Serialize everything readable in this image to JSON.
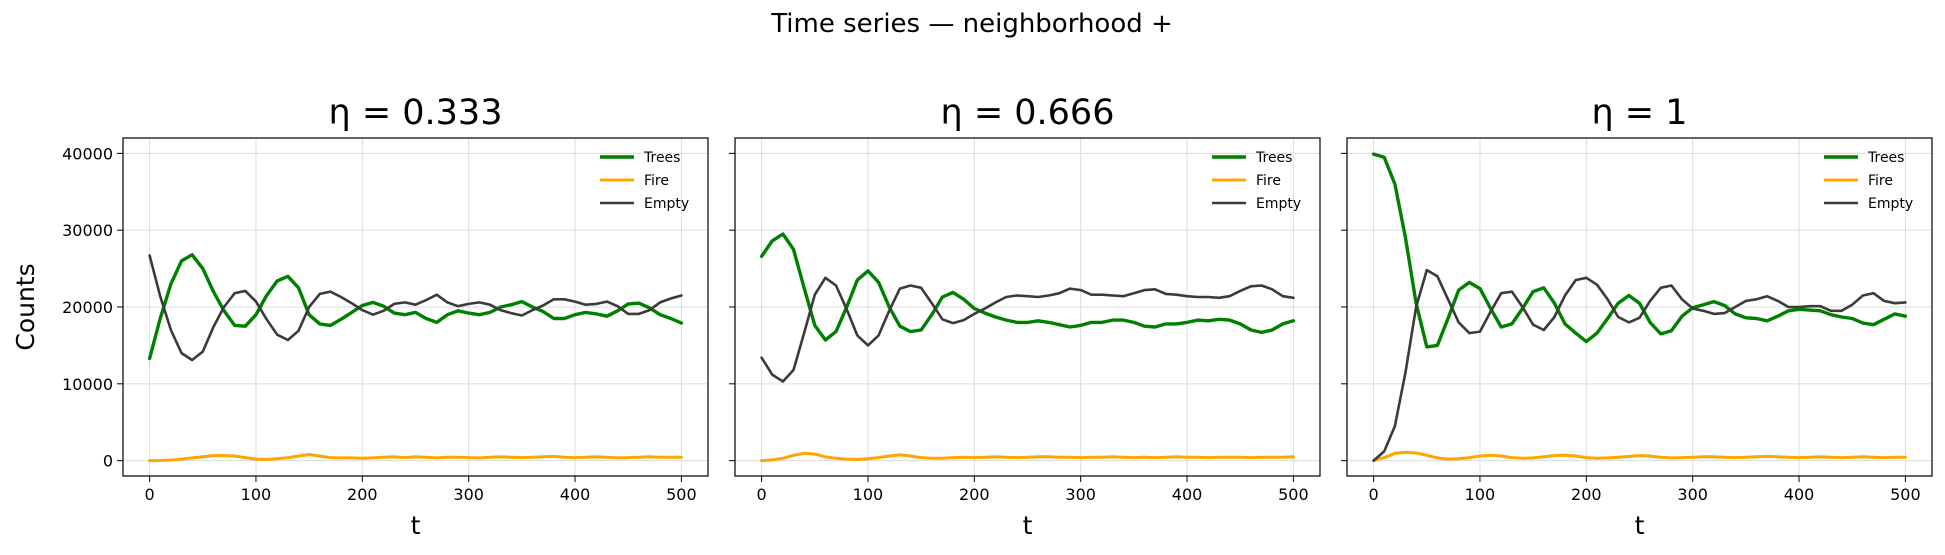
{
  "figure": {
    "suptitle": "Time series — neighborhood +"
  },
  "colors": {
    "Trees": "#008000",
    "Fire": "#ffa500",
    "Empty": "#3d3a3a"
  },
  "chart_data": [
    {
      "type": "line",
      "title": "η = 0.333",
      "xlabel": "t",
      "ylabel": "Counts",
      "xlim": [
        -25,
        525
      ],
      "ylim": [
        -2000,
        42000
      ],
      "xticks": [
        0,
        100,
        200,
        300,
        400,
        500
      ],
      "yticks": [
        0,
        10000,
        20000,
        30000,
        40000
      ],
      "grid": true,
      "legend": "top-right",
      "series": [
        {
          "name": "Trees",
          "x": [
            0,
            10,
            20,
            30,
            40,
            50,
            60,
            70,
            80,
            90,
            100,
            110,
            120,
            130,
            140,
            150,
            160,
            170,
            180,
            190,
            200,
            210,
            220,
            230,
            240,
            250,
            260,
            270,
            280,
            290,
            300,
            310,
            320,
            330,
            340,
            350,
            360,
            370,
            380,
            390,
            400,
            410,
            420,
            430,
            440,
            450,
            460,
            470,
            480,
            490,
            500
          ],
          "values": [
            13300,
            18500,
            23000,
            26000,
            26800,
            25000,
            22000,
            19500,
            17600,
            17500,
            19000,
            21500,
            23400,
            24000,
            22500,
            19000,
            17800,
            17600,
            18400,
            19300,
            20200,
            20600,
            20100,
            19200,
            19000,
            19300,
            18500,
            18000,
            19000,
            19500,
            19200,
            19000,
            19300,
            20000,
            20300,
            20700,
            20000,
            19400,
            18500,
            18500,
            19000,
            19300,
            19100,
            18800,
            19500,
            20400,
            20500,
            19900,
            19000,
            18500,
            17900
          ]
        },
        {
          "name": "Fire",
          "x": [
            0,
            10,
            20,
            30,
            40,
            50,
            60,
            70,
            80,
            90,
            100,
            110,
            120,
            130,
            140,
            150,
            160,
            170,
            180,
            190,
            200,
            210,
            220,
            230,
            240,
            250,
            260,
            270,
            280,
            290,
            300,
            310,
            320,
            330,
            340,
            350,
            360,
            370,
            380,
            390,
            400,
            410,
            420,
            430,
            440,
            450,
            460,
            470,
            480,
            490,
            500
          ],
          "values": [
            0,
            20,
            80,
            200,
            350,
            500,
            650,
            650,
            600,
            400,
            200,
            150,
            250,
            400,
            600,
            800,
            600,
            400,
            350,
            350,
            300,
            350,
            450,
            500,
            400,
            500,
            450,
            350,
            450,
            450,
            400,
            350,
            450,
            500,
            450,
            400,
            450,
            500,
            550,
            450,
            400,
            450,
            500,
            450,
            350,
            400,
            450,
            500,
            450,
            450,
            450
          ]
        },
        {
          "name": "Empty",
          "x": [
            0,
            10,
            20,
            30,
            40,
            50,
            60,
            70,
            80,
            90,
            100,
            110,
            120,
            130,
            140,
            150,
            160,
            170,
            180,
            190,
            200,
            210,
            220,
            230,
            240,
            250,
            260,
            270,
            280,
            290,
            300,
            310,
            320,
            330,
            340,
            350,
            360,
            370,
            380,
            390,
            400,
            410,
            420,
            430,
            440,
            450,
            460,
            470,
            480,
            490,
            500
          ],
          "values": [
            26700,
            21400,
            17000,
            14000,
            13100,
            14200,
            17400,
            20000,
            21800,
            22100,
            20700,
            18400,
            16400,
            15700,
            16900,
            20000,
            21700,
            22000,
            21300,
            20500,
            19600,
            19000,
            19500,
            20400,
            20600,
            20300,
            20900,
            21600,
            20600,
            20100,
            20400,
            20600,
            20300,
            19600,
            19200,
            18900,
            19600,
            20200,
            21000,
            21000,
            20700,
            20300,
            20400,
            20700,
            20100,
            19100,
            19100,
            19600,
            20600,
            21100,
            21500
          ]
        }
      ]
    },
    {
      "type": "line",
      "title": "η = 0.666",
      "xlabel": "t",
      "ylabel": "",
      "xlim": [
        -25,
        525
      ],
      "ylim": [
        -2000,
        42000
      ],
      "xticks": [
        0,
        100,
        200,
        300,
        400,
        500
      ],
      "yticks": [
        0,
        10000,
        20000,
        30000,
        40000
      ],
      "grid": true,
      "legend": "top-right",
      "series": [
        {
          "name": "Trees",
          "x": [
            0,
            10,
            20,
            30,
            40,
            50,
            60,
            70,
            80,
            90,
            100,
            110,
            120,
            130,
            140,
            150,
            160,
            170,
            180,
            190,
            200,
            210,
            220,
            230,
            240,
            250,
            260,
            270,
            280,
            290,
            300,
            310,
            320,
            330,
            340,
            350,
            360,
            370,
            380,
            390,
            400,
            410,
            420,
            430,
            440,
            450,
            460,
            470,
            480,
            490,
            500
          ],
          "values": [
            26600,
            28600,
            29500,
            27500,
            22500,
            17600,
            15700,
            16800,
            20000,
            23500,
            24700,
            23200,
            20000,
            17500,
            16800,
            17000,
            19000,
            21300,
            21900,
            21000,
            19800,
            19200,
            18700,
            18300,
            18000,
            18000,
            18200,
            18000,
            17700,
            17400,
            17600,
            18000,
            18000,
            18300,
            18300,
            18000,
            17500,
            17400,
            17800,
            17800,
            18000,
            18300,
            18200,
            18400,
            18300,
            17800,
            17000,
            16700,
            17000,
            17800,
            18200
          ]
        },
        {
          "name": "Fire",
          "x": [
            0,
            10,
            20,
            30,
            40,
            50,
            60,
            70,
            80,
            90,
            100,
            110,
            120,
            130,
            140,
            150,
            160,
            170,
            180,
            190,
            200,
            210,
            220,
            230,
            240,
            250,
            260,
            270,
            280,
            290,
            300,
            310,
            320,
            330,
            340,
            350,
            360,
            370,
            380,
            390,
            400,
            410,
            420,
            430,
            440,
            450,
            460,
            470,
            480,
            490,
            500
          ],
          "values": [
            0,
            100,
            300,
            700,
            950,
            850,
            500,
            300,
            200,
            150,
            250,
            400,
            600,
            750,
            600,
            400,
            300,
            300,
            400,
            450,
            400,
            450,
            500,
            450,
            400,
            450,
            500,
            500,
            450,
            450,
            400,
            450,
            450,
            500,
            450,
            400,
            450,
            400,
            450,
            500,
            450,
            450,
            400,
            450,
            450,
            450,
            400,
            450,
            450,
            450,
            500
          ]
        },
        {
          "name": "Empty",
          "x": [
            0,
            10,
            20,
            30,
            40,
            50,
            60,
            70,
            80,
            90,
            100,
            110,
            120,
            130,
            140,
            150,
            160,
            170,
            180,
            190,
            200,
            210,
            220,
            230,
            240,
            250,
            260,
            270,
            280,
            290,
            300,
            310,
            320,
            330,
            340,
            350,
            360,
            370,
            380,
            390,
            400,
            410,
            420,
            430,
            440,
            450,
            460,
            470,
            480,
            490,
            500
          ],
          "values": [
            13400,
            11200,
            10300,
            11800,
            16600,
            21600,
            23800,
            22800,
            19700,
            16300,
            15000,
            16300,
            19500,
            22400,
            22800,
            22500,
            20500,
            18400,
            17900,
            18300,
            19100,
            19800,
            20600,
            21300,
            21500,
            21400,
            21300,
            21500,
            21800,
            22400,
            22200,
            21600,
            21600,
            21500,
            21400,
            21800,
            22200,
            22300,
            21700,
            21600,
            21400,
            21300,
            21300,
            21200,
            21400,
            22100,
            22700,
            22800,
            22300,
            21400,
            21200
          ]
        }
      ]
    },
    {
      "type": "line",
      "title": "η = 1",
      "xlabel": "t",
      "ylabel": "",
      "xlim": [
        -25,
        525
      ],
      "ylim": [
        -2000,
        42000
      ],
      "xticks": [
        0,
        100,
        200,
        300,
        400,
        500
      ],
      "yticks": [
        0,
        10000,
        20000,
        30000,
        40000
      ],
      "grid": true,
      "legend": "top-right",
      "series": [
        {
          "name": "Trees",
          "x": [
            0,
            10,
            20,
            30,
            40,
            50,
            60,
            70,
            80,
            90,
            100,
            110,
            120,
            130,
            140,
            150,
            160,
            170,
            180,
            190,
            200,
            210,
            220,
            230,
            240,
            250,
            260,
            270,
            280,
            290,
            300,
            310,
            320,
            330,
            340,
            350,
            360,
            370,
            380,
            390,
            400,
            410,
            420,
            430,
            440,
            450,
            460,
            470,
            480,
            490,
            500
          ],
          "values": [
            39900,
            39500,
            36000,
            29000,
            20500,
            14800,
            15000,
            18500,
            22200,
            23200,
            22400,
            19800,
            17400,
            17800,
            19800,
            22000,
            22500,
            20500,
            17800,
            16600,
            15500,
            16600,
            18500,
            20500,
            21500,
            20500,
            18000,
            16500,
            16900,
            18800,
            19900,
            20300,
            20700,
            20200,
            19100,
            18600,
            18500,
            18200,
            18800,
            19500,
            19700,
            19600,
            19500,
            19000,
            18700,
            18500,
            17900,
            17700,
            18400,
            19100,
            18800
          ]
        },
        {
          "name": "Fire",
          "x": [
            0,
            10,
            20,
            30,
            40,
            50,
            60,
            70,
            80,
            90,
            100,
            110,
            120,
            130,
            140,
            150,
            160,
            170,
            180,
            190,
            200,
            210,
            220,
            230,
            240,
            250,
            260,
            270,
            280,
            290,
            300,
            310,
            320,
            330,
            340,
            350,
            360,
            370,
            380,
            390,
            400,
            410,
            420,
            430,
            440,
            450,
            460,
            470,
            480,
            490,
            500
          ],
          "values": [
            0,
            400,
            950,
            1100,
            1000,
            700,
            350,
            200,
            250,
            400,
            600,
            700,
            600,
            400,
            300,
            350,
            500,
            650,
            700,
            600,
            400,
            300,
            350,
            450,
            550,
            650,
            600,
            450,
            350,
            400,
            450,
            500,
            500,
            450,
            400,
            450,
            500,
            550,
            500,
            450,
            400,
            450,
            500,
            450,
            400,
            450,
            500,
            450,
            400,
            450,
            450
          ]
        },
        {
          "name": "Empty",
          "x": [
            0,
            10,
            20,
            30,
            40,
            50,
            60,
            70,
            80,
            90,
            100,
            110,
            120,
            130,
            140,
            150,
            160,
            170,
            180,
            190,
            200,
            210,
            220,
            230,
            240,
            250,
            260,
            270,
            280,
            290,
            300,
            310,
            320,
            330,
            340,
            350,
            360,
            370,
            380,
            390,
            400,
            410,
            420,
            430,
            440,
            450,
            460,
            470,
            480,
            490,
            500
          ],
          "values": [
            0,
            1200,
            4500,
            11500,
            20000,
            24800,
            24000,
            21000,
            18000,
            16600,
            16800,
            19400,
            21800,
            22000,
            20000,
            17700,
            17000,
            18700,
            21500,
            23500,
            23800,
            22900,
            21000,
            18700,
            18000,
            18600,
            20800,
            22500,
            22800,
            21000,
            19800,
            19500,
            19100,
            19200,
            20000,
            20800,
            21000,
            21400,
            20800,
            20000,
            20000,
            20100,
            20100,
            19500,
            19500,
            20300,
            21500,
            21800,
            20800,
            20500,
            20600
          ]
        }
      ]
    }
  ]
}
